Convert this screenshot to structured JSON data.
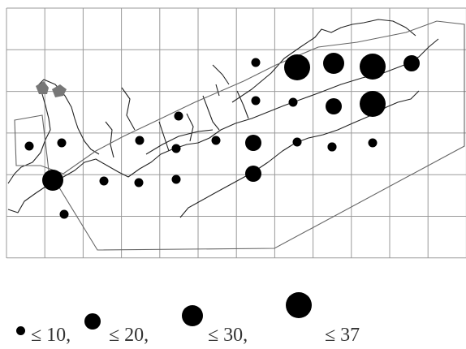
{
  "map": {
    "frame": "grid",
    "marker_color": "#000000",
    "wetland_color": "#777777",
    "symbol": "proportional-dot",
    "dot_classes": [
      1,
      2,
      3,
      4
    ]
  },
  "legend": {
    "items": [
      {
        "label": "≤ 10,",
        "class": 1
      },
      {
        "label": "≤ 20,",
        "class": 2
      },
      {
        "label": "≤ 30,",
        "class": 3
      },
      {
        "label": "≤ 37",
        "class": 4
      }
    ]
  },
  "sites": [
    {
      "class": 4
    },
    {
      "class": 3
    },
    {
      "class": 4
    },
    {
      "class": 2
    },
    {
      "class": 1
    },
    {
      "class": 1
    },
    {
      "class": 1
    },
    {
      "class": 2
    },
    {
      "class": 1
    },
    {
      "class": 4
    },
    {
      "class": 1
    },
    {
      "class": 1
    },
    {
      "class": 1
    },
    {
      "class": 2
    },
    {
      "class": 1
    },
    {
      "class": 1
    },
    {
      "class": 1
    },
    {
      "class": 1
    },
    {
      "class": 3
    },
    {
      "class": 1
    },
    {
      "class": 1
    },
    {
      "class": 1
    },
    {
      "class": 1
    },
    {
      "class": 1
    },
    {
      "class": 2
    },
    {
      "class": 1
    },
    {
      "class": 1
    },
    {
      "class": 1
    }
  ]
}
